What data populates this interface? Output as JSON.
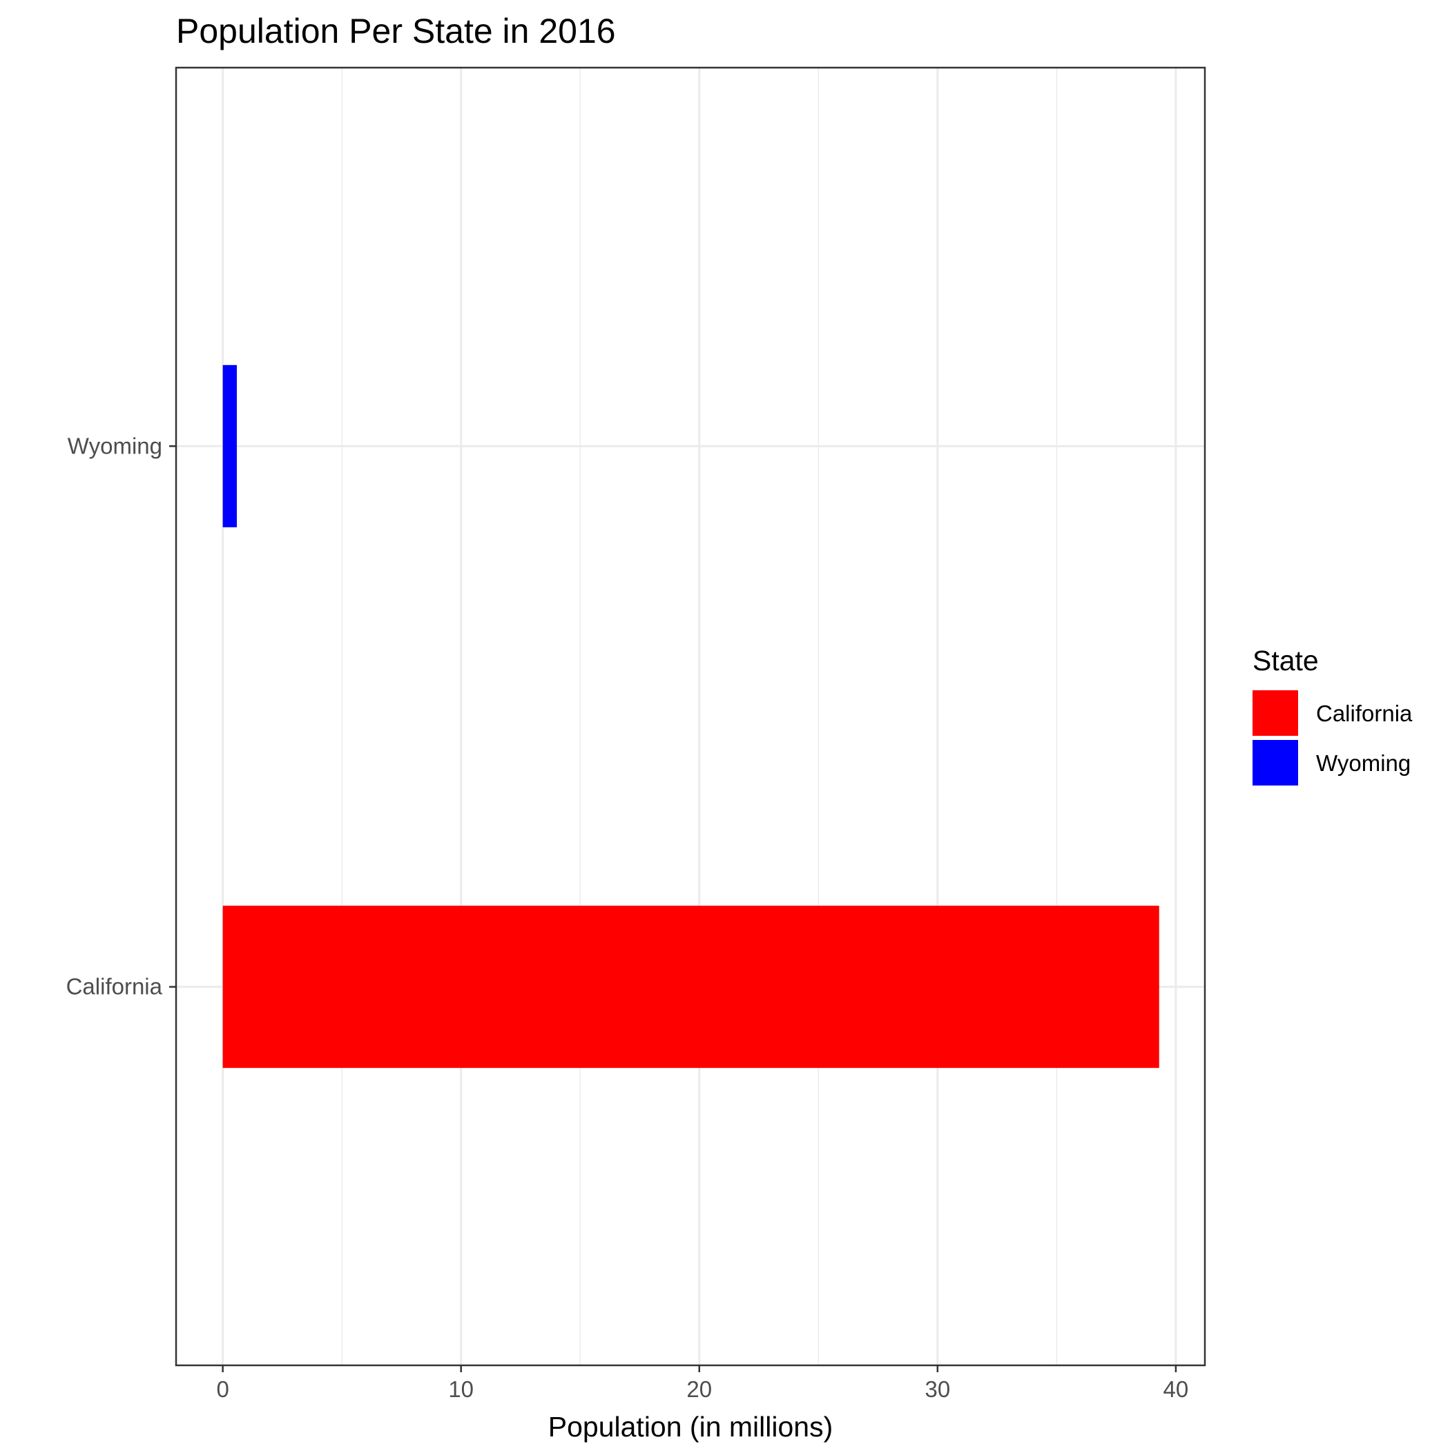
{
  "chart_data": {
    "type": "bar",
    "orientation": "horizontal",
    "title": "Population Per State in 2016",
    "xlabel": "Population (in millions)",
    "ylabel": "",
    "categories": [
      "California",
      "Wyoming"
    ],
    "values": [
      39.3,
      0.59
    ],
    "colors": [
      "#ff0000",
      "#0000ff"
    ],
    "xlim": [
      -1.96,
      41.22
    ],
    "xticks": [
      0,
      10,
      20,
      30,
      40
    ],
    "xtick_labels": [
      "0",
      "10",
      "20",
      "30",
      "40"
    ],
    "grid": true,
    "legend": {
      "title": "State",
      "placement": "right",
      "entries": [
        {
          "label": "California",
          "color": "#ff0000"
        },
        {
          "label": "Wyoming",
          "color": "#0000ff"
        }
      ]
    }
  }
}
